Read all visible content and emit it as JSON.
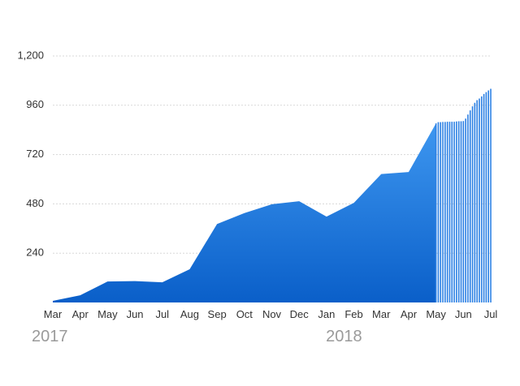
{
  "chart_data": {
    "type": "area",
    "title": "",
    "xlabel": "",
    "ylabel": "",
    "ylim": [
      0,
      1200
    ],
    "yticks": [
      "240",
      "480",
      "720",
      "960",
      "1,200"
    ],
    "ytick_values": [
      240,
      480,
      720,
      960,
      1200
    ],
    "categories": [
      "Mar",
      "Apr",
      "May",
      "Jun",
      "Jul",
      "Aug",
      "Sep",
      "Oct",
      "Nov",
      "Dec",
      "Jan",
      "Feb",
      "Mar",
      "Apr",
      "May",
      "Jun",
      "Jul"
    ],
    "year_labels": [
      "2017",
      "2018"
    ],
    "year_positions": [
      0,
      10.75
    ],
    "grid": true,
    "colors": {
      "fill_top": "#3E97F0",
      "fill_bottom": "#0A5FC9",
      "stripe": "#2C80E4",
      "grid": "#d8d8d8"
    },
    "x": [
      0,
      1,
      2,
      3,
      4,
      5,
      6,
      7,
      8,
      9,
      10,
      11,
      12,
      13,
      14,
      14.0833,
      14.1667,
      14.25,
      14.3333,
      14.4167,
      14.5,
      14.5833,
      14.6667,
      14.75,
      14.8333,
      14.9167,
      15,
      15.0833,
      15.1667,
      15.25,
      15.3333,
      15.4167,
      15.5,
      15.5833,
      15.6667,
      15.75,
      15.8333,
      15.9167,
      16
    ],
    "values": [
      8,
      35,
      102,
      104,
      98,
      162,
      382,
      435,
      478,
      493,
      418,
      485,
      625,
      635,
      872,
      878,
      878,
      879,
      879,
      880,
      880,
      880,
      880,
      881,
      882,
      882,
      883,
      895,
      915,
      935,
      955,
      972,
      985,
      993,
      1003,
      1015,
      1024,
      1032,
      1040
    ],
    "solid_until_x": 14
  }
}
